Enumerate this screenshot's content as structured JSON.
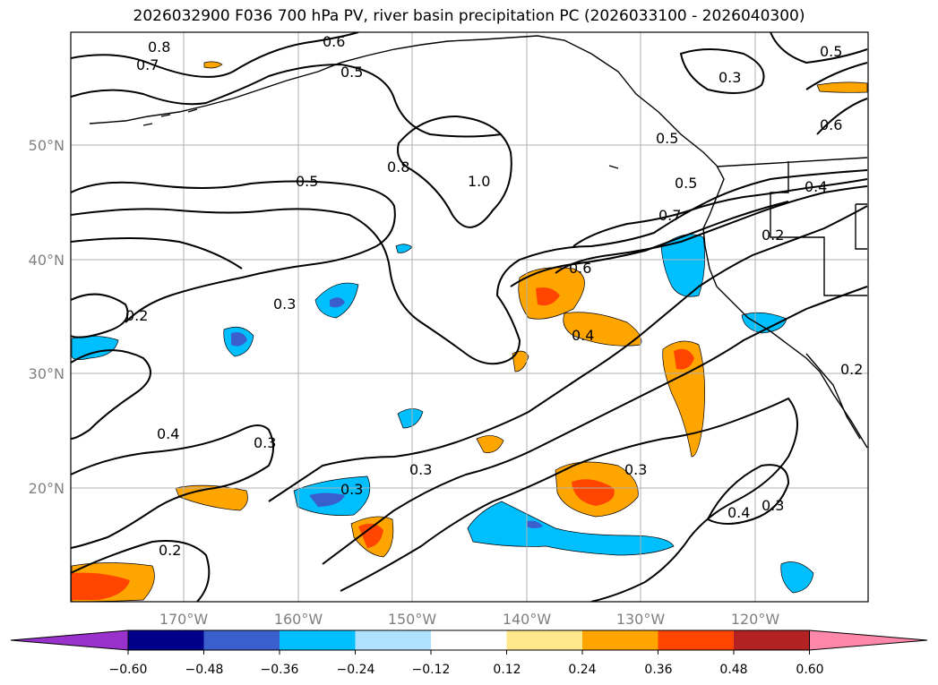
{
  "title": "2026032900 F036 700 hPa PV, river basin precipitation PC (2026033100 - 2026040300)",
  "map": {
    "lat_labels": [
      "50°N",
      "40°N",
      "30°N",
      "20°N"
    ],
    "lon_labels": [
      "170°W",
      "160°W",
      "150°W",
      "140°W",
      "130°W",
      "120°W"
    ],
    "grid": true
  },
  "contour_labels": [
    "0.8",
    "0.7",
    "0.6",
    "0.5",
    "0.3",
    "0.8",
    "1.0",
    "0.5",
    "0.5",
    "0.7",
    "0.2",
    "0.6",
    "0.3",
    "0.6",
    "0.2",
    "0.3",
    "0.4",
    "0.4",
    "0.3",
    "0.3",
    "0.3",
    "0.4",
    "0.3",
    "0.2",
    "0.2",
    "0.5",
    "0.5",
    "0.4"
  ],
  "colorbar": {
    "ticks": [
      "−0.60",
      "−0.48",
      "−0.36",
      "−0.24",
      "−0.12",
      "0.12",
      "0.24",
      "0.36",
      "0.48",
      "0.60"
    ],
    "colors": [
      "#9932cc",
      "#00008b",
      "#3a5fcd",
      "#00bfff",
      "#b0e2ff",
      "#ffffff",
      "#ffe88c",
      "#ffa500",
      "#ff4500",
      "#b22222",
      "#ff88aa"
    ]
  }
}
